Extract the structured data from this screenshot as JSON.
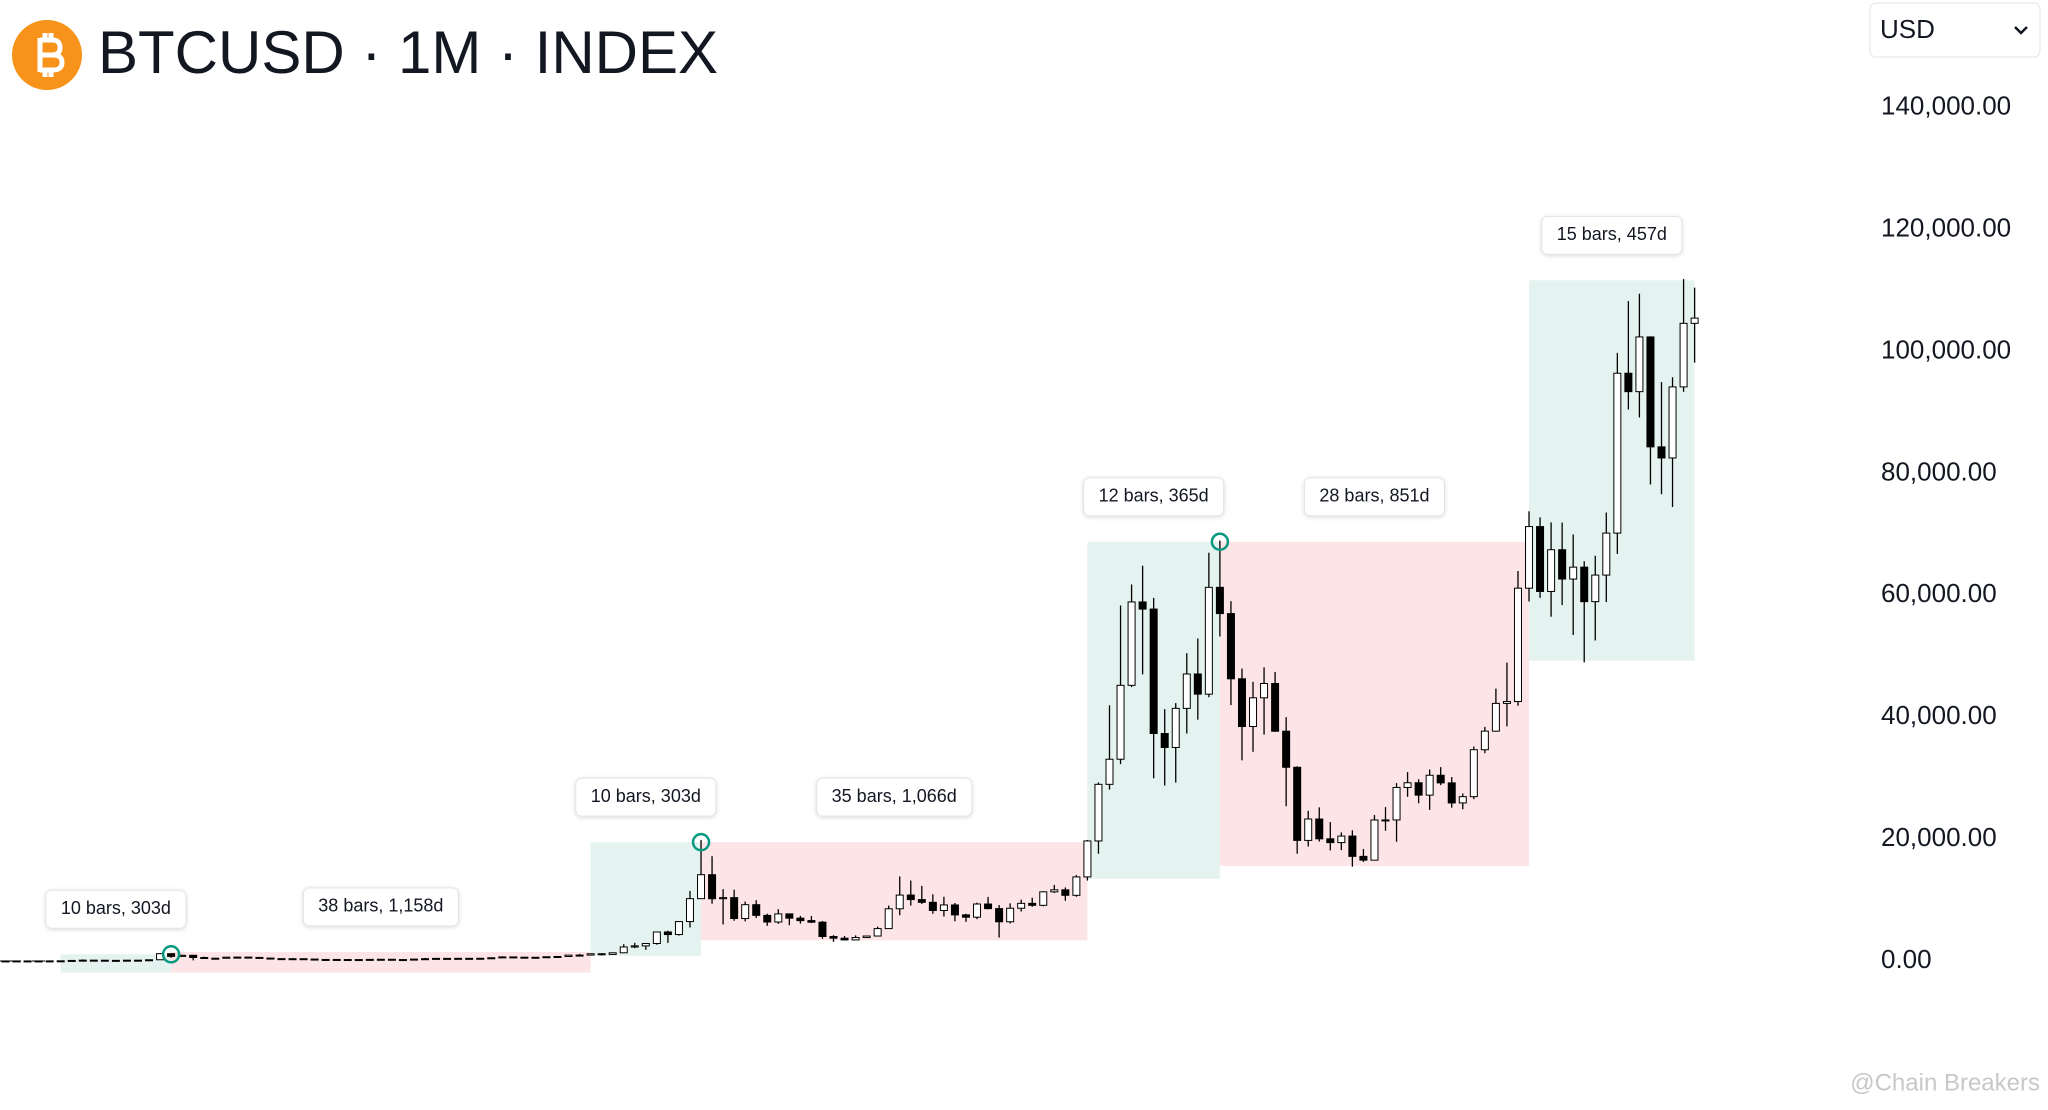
{
  "chart_data": {
    "type": "candlestick",
    "title": "BTCUSD · 1M · INDEX",
    "currency": "USD",
    "watermark": "@Chain Breakers",
    "ylim": [
      -24450,
      157700
    ],
    "yticks": [
      {
        "value": 0,
        "label": "0.00"
      },
      {
        "value": 20000,
        "label": "20,000.00"
      },
      {
        "value": 40000,
        "label": "40,000.00"
      },
      {
        "value": 60000,
        "label": "60,000.00"
      },
      {
        "value": 80000,
        "label": "80,000.00"
      },
      {
        "value": 100000,
        "label": "100,000.00"
      },
      {
        "value": 120000,
        "label": "120,000.00"
      },
      {
        "value": 140000,
        "label": "140,000.00"
      }
    ],
    "colors": {
      "up": "#ffffff",
      "down": "#000000",
      "wick": "#000000",
      "gain": "#e4f3ef",
      "loss": "#fde4e6",
      "marker": "#089981"
    },
    "candles": [
      [
        10.2,
        12.9,
        10.2,
        12.4
      ],
      [
        12.4,
        12.6,
        10.7,
        11.2
      ],
      [
        11.2,
        12.6,
        10.5,
        12.6
      ],
      [
        12.6,
        13.6,
        12.6,
        13.5
      ],
      [
        13.5,
        20.4,
        13.2,
        20
      ],
      [
        20,
        33.4,
        19.1,
        33
      ],
      [
        33,
        95,
        33,
        93
      ],
      [
        93,
        266,
        50,
        139
      ],
      [
        139,
        140,
        97,
        129
      ],
      [
        129,
        129,
        88,
        97
      ],
      [
        97,
        111,
        65,
        106
      ],
      [
        106,
        135,
        101,
        135
      ],
      [
        135,
        146,
        107,
        133
      ],
      [
        133,
        215,
        99,
        204
      ],
      [
        204,
        1242,
        198,
        1205
      ],
      [
        1205,
        1238,
        522,
        757
      ],
      [
        757,
        1022,
        737,
        938
      ],
      [
        938,
        960,
        102,
        573
      ],
      [
        573,
        722,
        425,
        457
      ],
      [
        457,
        536,
        340,
        448
      ],
      [
        448,
        638,
        436,
        630
      ],
      [
        630,
        680,
        553,
        640
      ],
      [
        640,
        650,
        560,
        589
      ],
      [
        589,
        600,
        440,
        481
      ],
      [
        481,
        504,
        365,
        389
      ],
      [
        389,
        420,
        275,
        338
      ],
      [
        338,
        460,
        313,
        378
      ],
      [
        378,
        384,
        299,
        320
      ],
      [
        320,
        320,
        152,
        217
      ],
      [
        217,
        266,
        210,
        254
      ],
      [
        254,
        300,
        235,
        244
      ],
      [
        244,
        261,
        214,
        236
      ],
      [
        236,
        249,
        225,
        230
      ],
      [
        230,
        267,
        220,
        264
      ],
      [
        264,
        318,
        253,
        285
      ],
      [
        285,
        285,
        199,
        230
      ],
      [
        230,
        247,
        226,
        236
      ],
      [
        236,
        334,
        235,
        314
      ],
      [
        314,
        503,
        297,
        377
      ],
      [
        377,
        470,
        350,
        430
      ],
      [
        430,
        462,
        350,
        368
      ],
      [
        368,
        445,
        366,
        437
      ],
      [
        437,
        439,
        395,
        416
      ],
      [
        416,
        462,
        412,
        448
      ],
      [
        448,
        546,
        441,
        531
      ],
      [
        531,
        780,
        522,
        673
      ],
      [
        673,
        705,
        460,
        624
      ],
      [
        624,
        625,
        530,
        575
      ],
      [
        575,
        625,
        568,
        609
      ],
      [
        609,
        718,
        603,
        700
      ],
      [
        700,
        753,
        674,
        742
      ],
      [
        742,
        975,
        740,
        964
      ],
      [
        964,
        1156,
        754,
        970
      ],
      [
        970,
        1211,
        920,
        1190
      ],
      [
        1190,
        1280,
        890,
        1080
      ],
      [
        1080,
        1350,
        1050,
        1348
      ],
      [
        1348,
        2760,
        1340,
        2300
      ],
      [
        2300,
        2980,
        2110,
        2480
      ],
      [
        2480,
        2920,
        1830,
        2875
      ],
      [
        2875,
        4770,
        2680,
        4765
      ],
      [
        4765,
        4975,
        2970,
        4340
      ],
      [
        4340,
        6470,
        4170,
        6470
      ],
      [
        6470,
        11500,
        5500,
        10230
      ],
      [
        10230,
        19870,
        10230,
        14160
      ],
      [
        14160,
        17200,
        9400,
        10220
      ],
      [
        10220,
        11800,
        6000,
        10400
      ],
      [
        10400,
        11700,
        6600,
        6970
      ],
      [
        6970,
        9760,
        6500,
        9240
      ],
      [
        9240,
        9990,
        7070,
        7490
      ],
      [
        7490,
        7760,
        5780,
        6400
      ],
      [
        6400,
        8500,
        6110,
        7730
      ],
      [
        7730,
        7760,
        5880,
        7030
      ],
      [
        7030,
        7410,
        6130,
        6630
      ],
      [
        6630,
        7390,
        6220,
        6370
      ],
      [
        6370,
        6570,
        3650,
        4020
      ],
      [
        4020,
        4240,
        3150,
        3740
      ],
      [
        3740,
        4110,
        3390,
        3460
      ],
      [
        3460,
        4200,
        3390,
        3850
      ],
      [
        3850,
        4130,
        3780,
        4100
      ],
      [
        4100,
        5640,
        4090,
        5320
      ],
      [
        5320,
        9090,
        5310,
        8570
      ],
      [
        8570,
        13880,
        7510,
        10820
      ],
      [
        10820,
        13200,
        9100,
        10080
      ],
      [
        10080,
        12330,
        9350,
        9630
      ],
      [
        9630,
        10950,
        7750,
        8290
      ],
      [
        8290,
        10540,
        7300,
        9200
      ],
      [
        9200,
        9520,
        6520,
        7570
      ],
      [
        7570,
        7750,
        6430,
        7190
      ],
      [
        7190,
        9580,
        6870,
        9350
      ],
      [
        9350,
        10520,
        8470,
        8600
      ],
      [
        8600,
        9190,
        3850,
        6440
      ],
      [
        6440,
        9460,
        6150,
        8660
      ],
      [
        8660,
        10070,
        8120,
        9460
      ],
      [
        9460,
        10390,
        8900,
        9140
      ],
      [
        9140,
        11460,
        8980,
        11350
      ],
      [
        11350,
        12480,
        11140,
        11680
      ],
      [
        11680,
        12070,
        9880,
        10780
      ],
      [
        10780,
        14100,
        10550,
        13800
      ],
      [
        13800,
        19860,
        13200,
        19700
      ],
      [
        19700,
        29300,
        17600,
        28990
      ],
      [
        28990,
        41950,
        28130,
        33110
      ],
      [
        33110,
        58330,
        32300,
        45240
      ],
      [
        45240,
        61790,
        44950,
        58920
      ],
      [
        58920,
        64860,
        47040,
        57750
      ],
      [
        57750,
        59580,
        30000,
        37330
      ],
      [
        37330,
        41330,
        28800,
        35040
      ],
      [
        35040,
        42320,
        29280,
        41460
      ],
      [
        41460,
        50510,
        37330,
        47100
      ],
      [
        47100,
        52920,
        39600,
        43790
      ],
      [
        43790,
        67000,
        43290,
        61320
      ],
      [
        61320,
        69000,
        53250,
        57010
      ],
      [
        57010,
        59050,
        42000,
        46310
      ],
      [
        46310,
        47990,
        32930,
        38480
      ],
      [
        38480,
        45820,
        34320,
        43190
      ],
      [
        43190,
        48190,
        37160,
        45540
      ],
      [
        45540,
        47440,
        37580,
        37710
      ],
      [
        37710,
        40020,
        25400,
        31790
      ],
      [
        31790,
        31950,
        17600,
        19790
      ],
      [
        19790,
        24650,
        18780,
        23300
      ],
      [
        23300,
        25210,
        19600,
        20050
      ],
      [
        20050,
        22800,
        18150,
        19430
      ],
      [
        19430,
        21100,
        18200,
        20500
      ],
      [
        20500,
        21450,
        15480,
        17170
      ],
      [
        17170,
        18390,
        16270,
        16550
      ],
      [
        16550,
        23950,
        16500,
        23140
      ],
      [
        23140,
        25250,
        21370,
        23150
      ],
      [
        23150,
        29190,
        19570,
        28480
      ],
      [
        28480,
        31000,
        26940,
        29250
      ],
      [
        29250,
        29820,
        25880,
        27220
      ],
      [
        27220,
        31430,
        24800,
        30480
      ],
      [
        30480,
        31820,
        28860,
        29230
      ],
      [
        29230,
        30190,
        25160,
        25940
      ],
      [
        25940,
        27490,
        24900,
        26970
      ],
      [
        26970,
        35200,
        26560,
        34670
      ],
      [
        34670,
        38420,
        34100,
        37720
      ],
      [
        37720,
        44700,
        37630,
        42270
      ],
      [
        42270,
        48970,
        38500,
        42580
      ],
      [
        42580,
        64000,
        41880,
        61180
      ],
      [
        61180,
        73800,
        59000,
        71290
      ],
      [
        71290,
        72800,
        59600,
        60640
      ],
      [
        60640,
        71980,
        56500,
        67490
      ],
      [
        67490,
        71950,
        58400,
        62680
      ],
      [
        62680,
        70000,
        53500,
        64630
      ],
      [
        64630,
        65600,
        49000,
        58970
      ],
      [
        58970,
        66500,
        52600,
        63330
      ],
      [
        63330,
        73600,
        58900,
        70220
      ],
      [
        70220,
        99800,
        66800,
        96450
      ],
      [
        96450,
        108300,
        90500,
        93430
      ],
      [
        93430,
        109500,
        89200,
        102410
      ],
      [
        102410,
        102500,
        78200,
        84370
      ],
      [
        84370,
        95000,
        76600,
        82550
      ],
      [
        82550,
        95800,
        74500,
        94210
      ],
      [
        94210,
        111900,
        93400,
        104640
      ],
      [
        104640,
        110500,
        98200,
        105500
      ]
    ],
    "annotations": [
      {
        "label": "10 bars, 303d",
        "kind": "gain",
        "from": 5,
        "to": 15,
        "low": -1900,
        "high": 1100,
        "marker": true
      },
      {
        "label": "38 bars, 1,158d",
        "kind": "loss",
        "from": 15,
        "to": 53,
        "low": -1900,
        "high": 1500,
        "marker": false
      },
      {
        "label": "10 bars, 303d",
        "kind": "gain",
        "from": 53,
        "to": 63,
        "low": 860,
        "high": 19500,
        "marker": true
      },
      {
        "label": "35 bars, 1,066d",
        "kind": "loss",
        "from": 63,
        "to": 98,
        "low": 3400,
        "high": 19500,
        "marker": false
      },
      {
        "label": "12 bars, 365d",
        "kind": "gain",
        "from": 98,
        "to": 110,
        "low": 13500,
        "high": 68800,
        "marker": true
      },
      {
        "label": "28 bars, 851d",
        "kind": "loss",
        "from": 110,
        "to": 138,
        "low": 15600,
        "high": 68800,
        "marker": false
      },
      {
        "label": "15 bars, 457d",
        "kind": "gain",
        "from": 138,
        "to": 153,
        "low": 49300,
        "high": 111700,
        "marker": false
      }
    ]
  }
}
